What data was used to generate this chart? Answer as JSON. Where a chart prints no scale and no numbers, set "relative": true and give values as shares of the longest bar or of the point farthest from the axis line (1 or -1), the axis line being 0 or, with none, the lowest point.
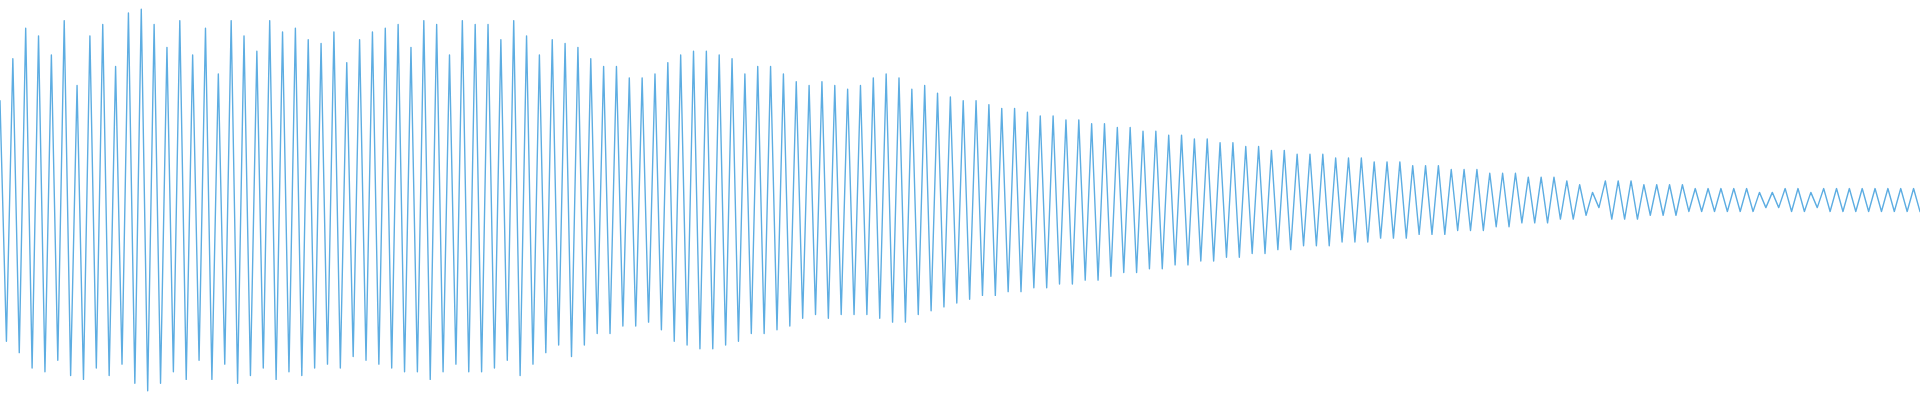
{
  "chart_data": {
    "type": "line",
    "relative": true,
    "categories": [
      null,
      null,
      null,
      null,
      null,
      null,
      null,
      null,
      null,
      null,
      null,
      null,
      null,
      null,
      null,
      null,
      null,
      null,
      null,
      null,
      null,
      null,
      null,
      null,
      null,
      null,
      null,
      null,
      null,
      null,
      null,
      null,
      null,
      null,
      null,
      null,
      null,
      null,
      null,
      null,
      null,
      null,
      null,
      null,
      null,
      null,
      null,
      null,
      null,
      null,
      null,
      null,
      null,
      null,
      null,
      null,
      null,
      null,
      null,
      null,
      null,
      null,
      null,
      null,
      null,
      null,
      null,
      null,
      null,
      null,
      null,
      null,
      null,
      null,
      null,
      null,
      null,
      null,
      null,
      null,
      null,
      null,
      null,
      null,
      null,
      null,
      null,
      null,
      null,
      null,
      null,
      null,
      null,
      null,
      null,
      null,
      null,
      null,
      null,
      null,
      null,
      null,
      null,
      null,
      null,
      null,
      null,
      null,
      null,
      null,
      null,
      null,
      null,
      null,
      null,
      null,
      null,
      null,
      null,
      null,
      null,
      null,
      null,
      null,
      null,
      null,
      null,
      null,
      null,
      null,
      null,
      null,
      null,
      null,
      null,
      null,
      null,
      null,
      null,
      null,
      null,
      null,
      null,
      null,
      null,
      null,
      null,
      null,
      null,
      null,
      null,
      null,
      null,
      null,
      null,
      null,
      null,
      null,
      null,
      null,
      null,
      null,
      null,
      null,
      null,
      null,
      null,
      null,
      null,
      null,
      null,
      null,
      null,
      null,
      null,
      null,
      null,
      null,
      null,
      null,
      null,
      null,
      null,
      null,
      null,
      null,
      null,
      null,
      null,
      null,
      null,
      null,
      null,
      null,
      null,
      null,
      null,
      null,
      null,
      null,
      null,
      null,
      null,
      null,
      null,
      null,
      null,
      null,
      null,
      null,
      null,
      null,
      null,
      null,
      null,
      null,
      null,
      null,
      null,
      null,
      null,
      null,
      null,
      null,
      null,
      null,
      null,
      null,
      null,
      null,
      null,
      null,
      null,
      null,
      null,
      null,
      null,
      null,
      null,
      null,
      null,
      null,
      null,
      null,
      null,
      null,
      null,
      null,
      null,
      null,
      null,
      null,
      null,
      null,
      null,
      null,
      null,
      null,
      null,
      null,
      null,
      null,
      null,
      null,
      null,
      null,
      null,
      null,
      null,
      null,
      null,
      null,
      null,
      null,
      null,
      null,
      null,
      null,
      null,
      null,
      null,
      null,
      null,
      null,
      null,
      null,
      null,
      null,
      null,
      null,
      null,
      null,
      null,
      null,
      null,
      null,
      null,
      null,
      null,
      null
    ],
    "series": [
      {
        "color": "#5dade2",
        "values": [
          0.76,
          0.13,
          0.87,
          0.1,
          0.95,
          0.06,
          0.93,
          0.05,
          0.88,
          0.08,
          0.97,
          0.04,
          0.8,
          0.03,
          0.93,
          0.06,
          0.96,
          0.04,
          0.85,
          0.07,
          0.99,
          0.02,
          1.0,
          0.0,
          0.96,
          0.02,
          0.9,
          0.05,
          0.97,
          0.03,
          0.88,
          0.08,
          0.95,
          0.03,
          0.83,
          0.07,
          0.97,
          0.02,
          0.93,
          0.04,
          0.89,
          0.06,
          0.97,
          0.03,
          0.94,
          0.05,
          0.95,
          0.04,
          0.92,
          0.06,
          0.91,
          0.07,
          0.94,
          0.06,
          0.86,
          0.09,
          0.92,
          0.08,
          0.94,
          0.07,
          0.95,
          0.06,
          0.96,
          0.05,
          0.9,
          0.05,
          0.97,
          0.03,
          0.96,
          0.05,
          0.88,
          0.07,
          0.97,
          0.05,
          0.96,
          0.05,
          0.96,
          0.06,
          0.92,
          0.08,
          0.97,
          0.04,
          0.93,
          0.07,
          0.88,
          0.1,
          0.92,
          0.12,
          0.91,
          0.09,
          0.9,
          0.12,
          0.87,
          0.15,
          0.85,
          0.15,
          0.85,
          0.17,
          0.82,
          0.17,
          0.82,
          0.18,
          0.83,
          0.16,
          0.86,
          0.13,
          0.88,
          0.12,
          0.89,
          0.11,
          0.89,
          0.11,
          0.88,
          0.12,
          0.87,
          0.13,
          0.83,
          0.15,
          0.85,
          0.15,
          0.85,
          0.16,
          0.83,
          0.17,
          0.81,
          0.19,
          0.8,
          0.2,
          0.81,
          0.19,
          0.8,
          0.2,
          0.79,
          0.2,
          0.8,
          0.2,
          0.82,
          0.19,
          0.83,
          0.18,
          0.82,
          0.18,
          0.79,
          0.2,
          0.8,
          0.21,
          0.78,
          0.22,
          0.77,
          0.23,
          0.76,
          0.24,
          0.76,
          0.25,
          0.75,
          0.25,
          0.74,
          0.26,
          0.74,
          0.26,
          0.73,
          0.27,
          0.72,
          0.27,
          0.72,
          0.28,
          0.71,
          0.28,
          0.71,
          0.29,
          0.7,
          0.29,
          0.7,
          0.3,
          0.69,
          0.31,
          0.69,
          0.31,
          0.68,
          0.32,
          0.68,
          0.32,
          0.67,
          0.33,
          0.67,
          0.33,
          0.66,
          0.34,
          0.66,
          0.34,
          0.65,
          0.35,
          0.65,
          0.35,
          0.64,
          0.36,
          0.64,
          0.36,
          0.63,
          0.37,
          0.63,
          0.37,
          0.62,
          0.38,
          0.62,
          0.38,
          0.62,
          0.38,
          0.61,
          0.39,
          0.61,
          0.39,
          0.61,
          0.39,
          0.6,
          0.4,
          0.6,
          0.4,
          0.6,
          0.4,
          0.59,
          0.41,
          0.59,
          0.41,
          0.59,
          0.41,
          0.58,
          0.42,
          0.58,
          0.42,
          0.58,
          0.42,
          0.57,
          0.43,
          0.57,
          0.43,
          0.57,
          0.44,
          0.56,
          0.44,
          0.56,
          0.44,
          0.56,
          0.45,
          0.55,
          0.45,
          0.54,
          0.46,
          0.52,
          0.48,
          0.55,
          0.45,
          0.55,
          0.45,
          0.55,
          0.45,
          0.54,
          0.46,
          0.54,
          0.46,
          0.54,
          0.46,
          0.54,
          0.47,
          0.53,
          0.47,
          0.53,
          0.47,
          0.53,
          0.47,
          0.53,
          0.47,
          0.53,
          0.47,
          0.52,
          0.48,
          0.52,
          0.48,
          0.53,
          0.47,
          0.53,
          0.47,
          0.52,
          0.48,
          0.53,
          0.47,
          0.53,
          0.47,
          0.53,
          0.47,
          0.53,
          0.47,
          0.53,
          0.47,
          0.53,
          0.47,
          0.53,
          0.47,
          0.53,
          0.47
        ]
      }
    ]
  }
}
